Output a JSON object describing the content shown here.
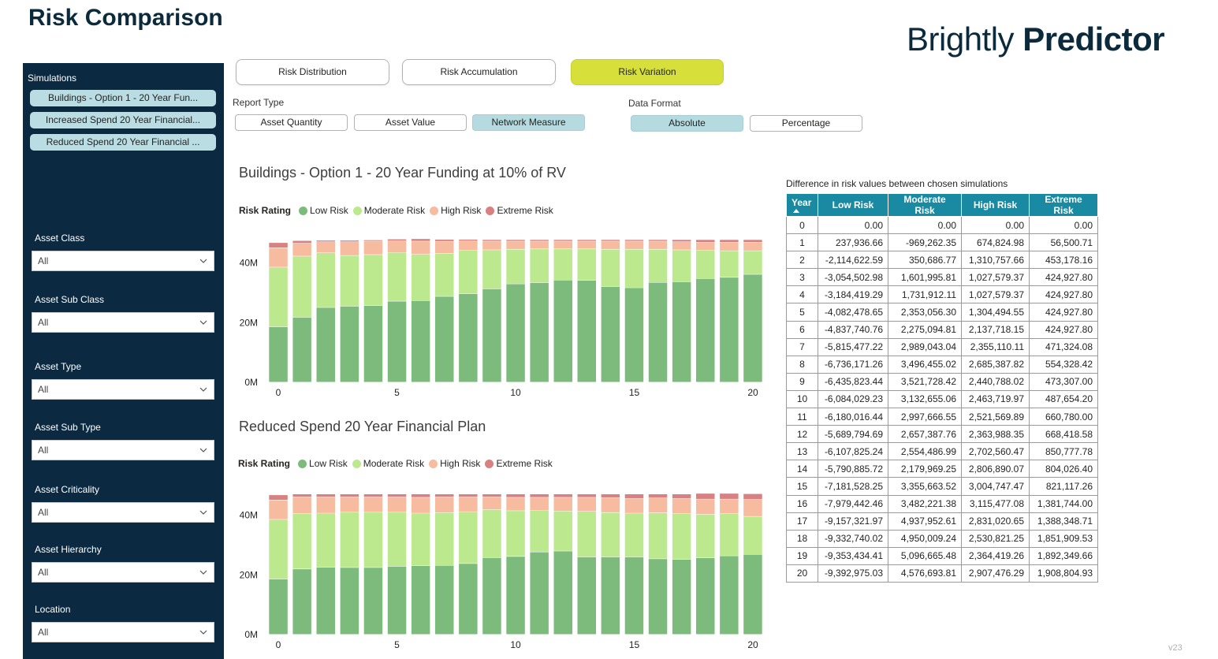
{
  "header": {
    "title": "Risk Comparison",
    "brand_light": "Brightly",
    "brand_bold": "Predictor"
  },
  "sidebar": {
    "simulations_label": "Simulations",
    "simulations": [
      "Buildings - Option 1 - 20 Year Fun...",
      "Increased Spend 20 Year Financial...",
      "Reduced Spend 20 Year Financial ..."
    ],
    "filters": [
      {
        "label": "Asset Class",
        "value": "All"
      },
      {
        "label": "Asset Sub Class",
        "value": "All"
      },
      {
        "label": "Asset Type",
        "value": "All"
      },
      {
        "label": "Asset Sub Type",
        "value": "All"
      },
      {
        "label": "Asset Criticality",
        "value": "All"
      },
      {
        "label": "Asset Hierarchy",
        "value": "All"
      },
      {
        "label": "Location",
        "value": "All"
      }
    ]
  },
  "tabs": [
    "Risk Distribution",
    "Risk Accumulation",
    "Risk Variation"
  ],
  "active_tab": "Risk Variation",
  "report_type": {
    "label": "Report Type",
    "options": [
      "Asset Quantity",
      "Asset Value",
      "Network Measure"
    ],
    "selected": "Network Measure"
  },
  "data_format": {
    "label": "Data Format",
    "options": [
      "Absolute",
      "Percentage"
    ],
    "selected": "Absolute"
  },
  "colors": {
    "low": "#7dbb7d",
    "moderate": "#bce98d",
    "high": "#f7bba0",
    "extreme": "#d98080",
    "accent_tab": "#d7e03a",
    "table_header": "#1a8aa2",
    "sidebar_bg": "#0b2a42"
  },
  "legend": {
    "title": "Risk Rating",
    "items": [
      "Low Risk",
      "Moderate Risk",
      "High Risk",
      "Extreme Risk"
    ]
  },
  "chart_data": [
    {
      "type": "bar",
      "title": "Buildings - Option 1 - 20 Year Funding at 10% of RV",
      "stacked": true,
      "categories": [
        0,
        1,
        2,
        3,
        4,
        5,
        6,
        7,
        8,
        9,
        10,
        11,
        12,
        13,
        14,
        15,
        16,
        17,
        18,
        19,
        20
      ],
      "x_tick_labels": [
        "0",
        "5",
        "10",
        "15",
        "20"
      ],
      "y_tick_labels": [
        "0M",
        "20M",
        "40M"
      ],
      "ylim": [
        0,
        47
      ],
      "unit": "M",
      "series": [
        {
          "name": "Low Risk",
          "values": [
            18.5,
            21.7,
            25,
            25.4,
            25.6,
            27.1,
            27.3,
            28.7,
            29.6,
            31.2,
            32.9,
            33.3,
            34.2,
            34.1,
            32,
            31.6,
            33.4,
            33.6,
            34.7,
            35.1,
            36.1
          ]
        },
        {
          "name": "Moderate Risk",
          "values": [
            20,
            20.5,
            18.3,
            17,
            17.1,
            16.3,
            15.5,
            14.4,
            14.5,
            13.1,
            11.6,
            11.3,
            10.4,
            10.5,
            12.5,
            12.9,
            11.1,
            10.7,
            9.4,
            8.9,
            7.9
          ]
        },
        {
          "name": "High Risk",
          "values": [
            6.5,
            4.3,
            3.7,
            4.6,
            4.5,
            3.9,
            4.4,
            4.1,
            3.2,
            2.9,
            2.7,
            2.6,
            2.6,
            2.6,
            2.7,
            2.7,
            2.7,
            2.7,
            2.7,
            2.8,
            2.8
          ]
        },
        {
          "name": "Extreme Risk",
          "values": [
            1.7,
            0.9,
            0.5,
            0.5,
            0.4,
            0.6,
            0.8,
            0.6,
            0.5,
            0.5,
            0.5,
            0.5,
            0.5,
            0.5,
            0.5,
            0.5,
            0.5,
            0.7,
            0.9,
            0.9,
            0.9
          ]
        }
      ]
    },
    {
      "type": "bar",
      "title": "Reduced Spend 20 Year Financial Plan",
      "stacked": true,
      "categories": [
        0,
        1,
        2,
        3,
        4,
        5,
        6,
        7,
        8,
        9,
        10,
        11,
        12,
        13,
        14,
        15,
        16,
        17,
        18,
        19,
        20
      ],
      "x_tick_labels": [
        "0",
        "5",
        "10",
        "15",
        "20"
      ],
      "y_tick_labels": [
        "0M",
        "20M",
        "40M"
      ],
      "ylim": [
        0,
        47
      ],
      "unit": "M",
      "series": [
        {
          "name": "Low Risk",
          "values": [
            18.5,
            21.9,
            22.5,
            22.4,
            22.4,
            22.8,
            23,
            23.1,
            23.7,
            25.7,
            26.1,
            27.6,
            27.9,
            25.9,
            25.9,
            25.9,
            25.3,
            25.1,
            25.6,
            26.3,
            26.8
          ]
        },
        {
          "name": "Moderate Risk",
          "values": [
            20,
            18.6,
            18.1,
            18.5,
            18.5,
            18.1,
            17.6,
            17.7,
            17.4,
            16.1,
            15.3,
            13.9,
            13.4,
            15.3,
            14.9,
            14.7,
            15.4,
            15.3,
            14.6,
            14.1,
            12.7
          ]
        },
        {
          "name": "High Risk",
          "values": [
            6.5,
            5.5,
            5.4,
            5.1,
            5.1,
            5.1,
            5.3,
            5.2,
            4.9,
            4.2,
            4.5,
            4.4,
            4.6,
            4.7,
            5,
            4.9,
            5,
            5.1,
            5.1,
            4.9,
            5.7
          ]
        },
        {
          "name": "Extreme Risk",
          "values": [
            1.7,
            1,
            1,
            1,
            1,
            1,
            1.1,
            1,
            1,
            1,
            1.1,
            1.1,
            1.1,
            1.1,
            1.2,
            1.5,
            1.3,
            1.5,
            1.9,
            1.9,
            1.9
          ]
        }
      ]
    }
  ],
  "diff_table": {
    "caption": "Difference in risk values between chosen simulations",
    "headers": [
      "Year",
      "Low Risk",
      "Moderate Risk",
      "High Risk",
      "Extreme Risk"
    ],
    "rows": [
      [
        "0",
        "0.00",
        "0.00",
        "0.00",
        "0.00"
      ],
      [
        "1",
        "237,936.66",
        "-969,262.35",
        "674,824.98",
        "56,500.71"
      ],
      [
        "2",
        "-2,114,622.59",
        "350,686.77",
        "1,310,757.66",
        "453,178.16"
      ],
      [
        "3",
        "-3,054,502.98",
        "1,601,995.81",
        "1,027,579.37",
        "424,927.80"
      ],
      [
        "4",
        "-3,184,419.29",
        "1,731,912.11",
        "1,027,579.37",
        "424,927.80"
      ],
      [
        "5",
        "-4,082,478.65",
        "2,353,056.30",
        "1,304,494.55",
        "424,927.80"
      ],
      [
        "6",
        "-4,837,740.76",
        "2,275,094.81",
        "2,137,718.15",
        "424,927.80"
      ],
      [
        "7",
        "-5,815,477.22",
        "2,989,043.04",
        "2,355,110.11",
        "471,324.08"
      ],
      [
        "8",
        "-6,736,171.26",
        "3,496,455.02",
        "2,685,387.82",
        "554,328.42"
      ],
      [
        "9",
        "-6,435,823.44",
        "3,521,728.42",
        "2,440,788.02",
        "473,307.00"
      ],
      [
        "10",
        "-6,084,029.23",
        "3,132,655.06",
        "2,463,719.97",
        "487,654.20"
      ],
      [
        "11",
        "-6,180,016.44",
        "2,997,666.55",
        "2,521,569.89",
        "660,780.00"
      ],
      [
        "12",
        "-5,689,794.69",
        "2,657,387.76",
        "2,363,988.35",
        "668,418.58"
      ],
      [
        "13",
        "-6,107,825.24",
        "2,554,486.99",
        "2,702,560.47",
        "850,777.78"
      ],
      [
        "14",
        "-5,790,885.72",
        "2,179,969.25",
        "2,806,890.07",
        "804,026.40"
      ],
      [
        "15",
        "-7,181,528.25",
        "3,355,663.52",
        "3,004,747.47",
        "821,117.26"
      ],
      [
        "16",
        "-7,979,442.46",
        "3,482,221.38",
        "3,115,477.08",
        "1,381,744.00"
      ],
      [
        "17",
        "-9,157,321.97",
        "4,937,952.61",
        "2,831,020.65",
        "1,388,348.71"
      ],
      [
        "18",
        "-9,332,740.02",
        "4,950,009.24",
        "2,530,821.25",
        "1,851,909.53"
      ],
      [
        "19",
        "-9,353,434.41",
        "5,096,665.48",
        "2,364,419.26",
        "1,892,349.66"
      ],
      [
        "20",
        "-9,392,975.03",
        "4,576,693.81",
        "2,907,476.29",
        "1,908,804.93"
      ]
    ]
  },
  "version": "v23"
}
